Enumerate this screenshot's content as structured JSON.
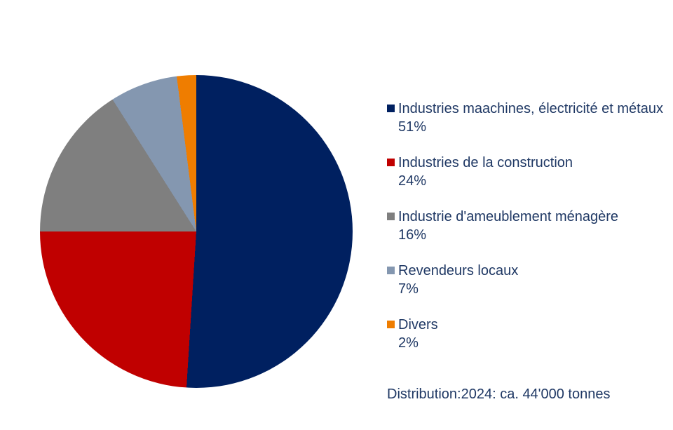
{
  "chart_data": {
    "type": "pie",
    "title": "",
    "labels": [
      "Industries maachines, électricité et métaux",
      "Industries de la construction",
      "Industrie d'ameublement ménagère",
      "Revendeurs locaux",
      "Divers"
    ],
    "values": [
      51,
      24,
      16,
      7,
      2
    ],
    "unit": "%",
    "colors": [
      "#002060",
      "#C00000",
      "#7F7F7F",
      "#8497B0",
      "#EF7D00"
    ],
    "start_angle_deg": 0,
    "direction": "clockwise",
    "legend_position": "right",
    "annotation": "Distribution:2024: ca. 44'000 tonnes"
  },
  "legend": {
    "items": [
      {
        "label": "Industries maachines, électricité et métaux",
        "value": "51%",
        "color": "#002060"
      },
      {
        "label": "Industries de la construction",
        "value": "24%",
        "color": "#C00000"
      },
      {
        "label": "Industrie d'ameublement ménagère",
        "value": "16%",
        "color": "#7F7F7F"
      },
      {
        "label": "Revendeurs locaux",
        "value": "7%",
        "color": "#8497B0"
      },
      {
        "label": "Divers",
        "value": "2%",
        "color": "#EF7D00"
      }
    ]
  },
  "footer": {
    "text": "Distribution:2024: ca. 44'000 tonnes"
  },
  "styles": {
    "text_color": "#1F3864",
    "background": "#FFFFFF"
  }
}
